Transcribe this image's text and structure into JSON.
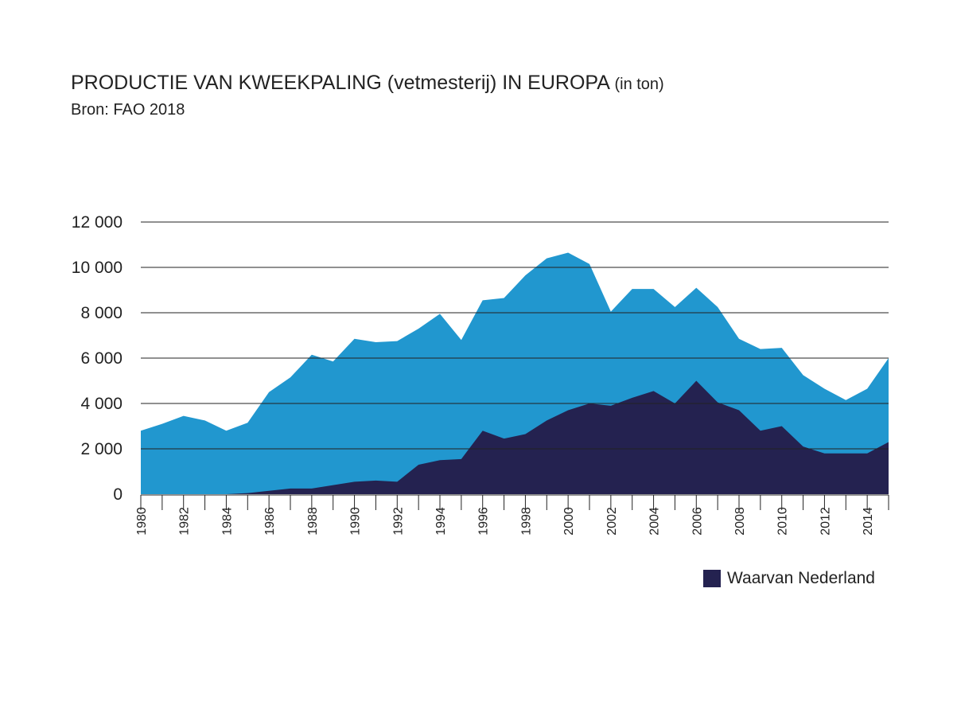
{
  "title": "PRODUCTIE VAN KWEEKPALING (vetmesterij) IN EUROPA",
  "title_unit": "(in ton)",
  "subtitle": "Bron: FAO 2018",
  "colors": {
    "total": "#2197cf",
    "nederland": "#242250"
  },
  "chart_data": {
    "type": "area",
    "x": [
      1980,
      1981,
      1982,
      1983,
      1984,
      1985,
      1986,
      1987,
      1988,
      1989,
      1990,
      1991,
      1992,
      1993,
      1994,
      1995,
      1996,
      1997,
      1998,
      1999,
      2000,
      2001,
      2002,
      2003,
      2004,
      2005,
      2006,
      2007,
      2008,
      2009,
      2010,
      2011,
      2012,
      2013,
      2014,
      2015
    ],
    "x_tick_labels": [
      "1980",
      "1982",
      "1984",
      "1986",
      "1988",
      "1990",
      "1992",
      "1994",
      "1996",
      "1998",
      "2000",
      "2002",
      "2004",
      "2006",
      "2008",
      "2010",
      "2012",
      "2014"
    ],
    "ylim": [
      0,
      12000
    ],
    "y_ticks": [
      0,
      2000,
      4000,
      6000,
      8000,
      10000,
      12000
    ],
    "y_tick_labels": [
      "0",
      "2 000",
      "4 000",
      "6 000",
      "8 000",
      "10 000",
      "12 000"
    ],
    "grid": true,
    "legend_position": "bottom-right",
    "series": [
      {
        "key": "total",
        "values": [
          2800,
          3100,
          3450,
          3250,
          2800,
          3150,
          4500,
          5150,
          6150,
          5850,
          6850,
          6700,
          6750,
          7300,
          7950,
          6800,
          8550,
          8650,
          9650,
          10400,
          10650,
          10150,
          8050,
          9050,
          9050,
          8250,
          9100,
          8250,
          6850,
          6400,
          6450,
          5250,
          4650,
          4150,
          4650,
          6000
        ]
      },
      {
        "key": "nederland",
        "name": "Waarvan Nederland",
        "values": [
          0,
          0,
          0,
          0,
          0,
          50,
          150,
          250,
          250,
          400,
          550,
          600,
          550,
          1300,
          1500,
          1550,
          2800,
          2450,
          2650,
          3250,
          3700,
          4000,
          3900,
          4250,
          4550,
          4000,
          5000,
          4050,
          3700,
          2800,
          3000,
          2100,
          1800,
          1800,
          1800,
          2300
        ]
      }
    ]
  }
}
